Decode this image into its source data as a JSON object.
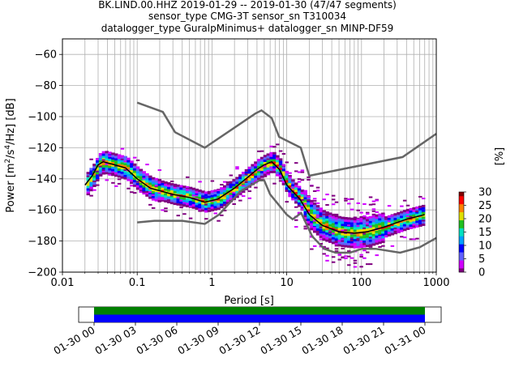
{
  "chart_data": {
    "type": "heatmap",
    "title_lines": [
      "BK.LIND.00.HHZ   2019-01-29 -- 2019-01-30  (47/47 segments)",
      "sensor_type CMG-3T sensor_sn T310034",
      "datalogger_type GuralpMinimus+ datalogger_sn MINP-DF59"
    ],
    "xlabel": "Period [s]",
    "ylabel": "Power [m²/s⁴/Hz] [dB]",
    "xscale": "log",
    "xlim": [
      0.01,
      1000
    ],
    "ylim": [
      -200,
      -50
    ],
    "grid": true,
    "xticks": [
      {
        "value": 0.01,
        "label": "0.01"
      },
      {
        "value": 0.1,
        "label": "0.1"
      },
      {
        "value": 1,
        "label": "1"
      },
      {
        "value": 10,
        "label": "10"
      },
      {
        "value": 100,
        "label": "100"
      },
      {
        "value": 1000,
        "label": "1000"
      }
    ],
    "yticks": [
      {
        "value": -60,
        "label": "−60"
      },
      {
        "value": -80,
        "label": "−80"
      },
      {
        "value": -100,
        "label": "−100"
      },
      {
        "value": -120,
        "label": "−120"
      },
      {
        "value": -140,
        "label": "−140"
      },
      {
        "value": -160,
        "label": "−160"
      },
      {
        "value": -180,
        "label": "−180"
      },
      {
        "value": -200,
        "label": "−200"
      }
    ],
    "colorbar": {
      "label": "[%]",
      "range": [
        0,
        30
      ],
      "ticks": [
        "0",
        "5",
        "10",
        "15",
        "20",
        "25",
        "30"
      ]
    },
    "model_curves": {
      "color": "#666666",
      "noise_high": [
        [
          0.1,
          -91
        ],
        [
          0.22,
          -97
        ],
        [
          0.32,
          -110
        ],
        [
          0.8,
          -120
        ],
        [
          3.8,
          -98
        ],
        [
          4.6,
          -96
        ],
        [
          6.3,
          -101
        ],
        [
          7.9,
          -113
        ],
        [
          15.4,
          -120
        ],
        [
          20,
          -138
        ],
        [
          354.8,
          -126
        ],
        [
          1000,
          -111
        ]
      ],
      "noise_low": [
        [
          0.1,
          -168
        ],
        [
          0.17,
          -167
        ],
        [
          0.4,
          -167
        ],
        [
          0.8,
          -169
        ],
        [
          1.24,
          -163
        ],
        [
          2.4,
          -148
        ],
        [
          4.3,
          -141
        ],
        [
          5,
          -141
        ],
        [
          6,
          -150
        ],
        [
          10,
          -163
        ],
        [
          12,
          -166
        ],
        [
          15.6,
          -162
        ],
        [
          21.9,
          -177
        ],
        [
          31.6,
          -185
        ],
        [
          45,
          -187.5
        ],
        [
          70,
          -187.5
        ],
        [
          101,
          -185
        ],
        [
          154,
          -185
        ],
        [
          328,
          -187.5
        ],
        [
          600,
          -184
        ],
        [
          1000,
          -178
        ]
      ]
    },
    "mean_curve": {
      "color": "#000000",
      "points": [
        [
          0.02,
          -144
        ],
        [
          0.025,
          -138
        ],
        [
          0.03,
          -131
        ],
        [
          0.035,
          -129
        ],
        [
          0.05,
          -131
        ],
        [
          0.07,
          -133
        ],
        [
          0.1,
          -140
        ],
        [
          0.15,
          -146
        ],
        [
          0.3,
          -150
        ],
        [
          0.5,
          -152
        ],
        [
          0.8,
          -155
        ],
        [
          1.2,
          -153
        ],
        [
          2,
          -146
        ],
        [
          3,
          -139
        ],
        [
          4,
          -134
        ],
        [
          5,
          -131
        ],
        [
          6.3,
          -129
        ],
        [
          8,
          -134
        ],
        [
          10,
          -144
        ],
        [
          15,
          -153
        ],
        [
          20,
          -163
        ],
        [
          30,
          -170
        ],
        [
          50,
          -174
        ],
        [
          80,
          -175
        ],
        [
          120,
          -174
        ],
        [
          200,
          -171
        ],
        [
          400,
          -166
        ],
        [
          700,
          -163
        ]
      ]
    },
    "density_color_ramp": [
      "#800080",
      "#d000ff",
      "#6060ff",
      "#0000ff",
      "#00a0ff",
      "#00e0c0",
      "#20c020",
      "#e0e000",
      "#ff8000",
      "#ff0000",
      "#800000"
    ],
    "time_axis": {
      "tick_labels": [
        "01-30 00",
        "01-30 03",
        "01-30 06",
        "01-30 09",
        "01-30 12",
        "01-30 15",
        "01-30 18",
        "01-30 21",
        "01-31 00"
      ],
      "bar_colors": [
        "#008000",
        "#0000ff"
      ],
      "coverage": 1.0
    }
  }
}
